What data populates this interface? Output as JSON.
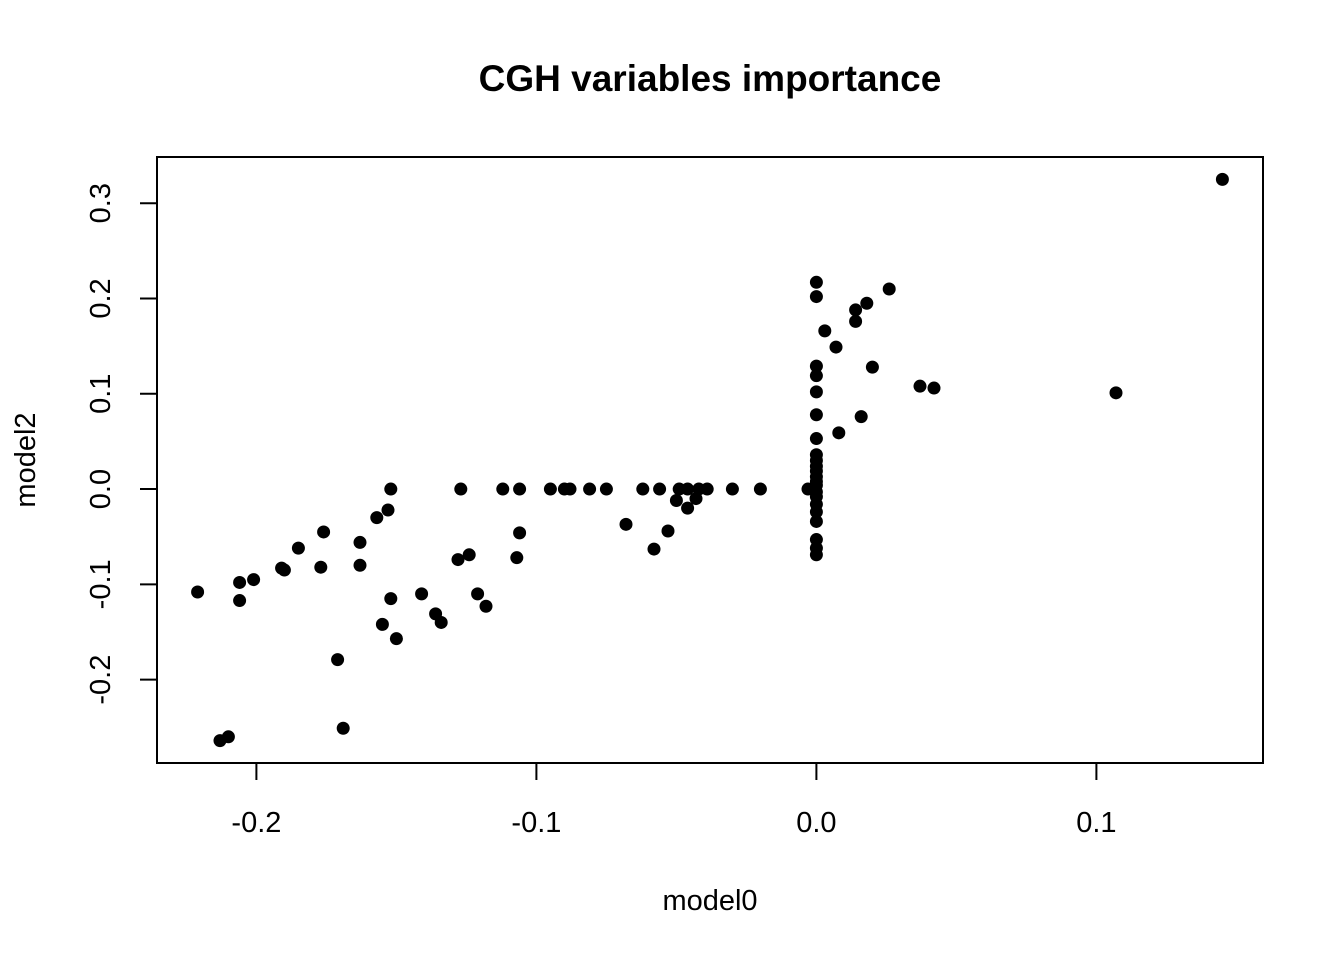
{
  "chart_data": {
    "type": "scatter",
    "title": "CGH variables importance",
    "xlabel": "model0",
    "ylabel": "model2",
    "xlim": [
      -0.2355,
      0.1595
    ],
    "ylim": [
      -0.2875,
      0.3485
    ],
    "x_ticks": [
      -0.2,
      -0.1,
      0.0,
      0.1
    ],
    "x_tick_labels": [
      "-0.2",
      "-0.1",
      "0.0",
      "0.1"
    ],
    "y_ticks": [
      -0.2,
      -0.1,
      0.0,
      0.1,
      0.2,
      0.3
    ],
    "y_tick_labels": [
      "-0.2",
      "-0.1",
      "0.0",
      "0.1",
      "0.2",
      "0.3"
    ],
    "grid": false,
    "marker": "filled-circle",
    "point_color": "#000000",
    "points": [
      [
        0.145,
        0.325
      ],
      [
        0.107,
        0.101
      ],
      [
        0.042,
        0.106
      ],
      [
        0.037,
        0.108
      ],
      [
        0.026,
        0.21
      ],
      [
        0.02,
        0.128
      ],
      [
        0.018,
        0.195
      ],
      [
        0.016,
        0.076
      ],
      [
        0.014,
        0.188
      ],
      [
        0.014,
        0.176
      ],
      [
        0.008,
        0.059
      ],
      [
        0.007,
        0.149
      ],
      [
        0.003,
        0.166
      ],
      [
        0.0,
        0.217
      ],
      [
        0.0,
        0.202
      ],
      [
        0.0,
        0.129
      ],
      [
        0.0,
        0.119
      ],
      [
        0.0,
        0.102
      ],
      [
        0.0,
        0.078
      ],
      [
        0.0,
        0.053
      ],
      [
        0.0,
        0.036
      ],
      [
        0.0,
        0.03
      ],
      [
        0.0,
        0.024
      ],
      [
        0.0,
        0.019
      ],
      [
        0.0,
        0.013
      ],
      [
        0.0,
        0.008
      ],
      [
        0.0,
        0.004
      ],
      [
        0.0,
        -0.003
      ],
      [
        0.0,
        -0.008
      ],
      [
        0.0,
        -0.016
      ],
      [
        0.0,
        -0.024
      ],
      [
        0.0,
        -0.034
      ],
      [
        0.0,
        -0.053
      ],
      [
        0.0,
        -0.062
      ],
      [
        0.0,
        -0.069
      ],
      [
        -0.003,
        0.0
      ],
      [
        -0.02,
        0.0
      ],
      [
        -0.03,
        0.0
      ],
      [
        -0.039,
        0.0
      ],
      [
        -0.042,
        0.0
      ],
      [
        -0.043,
        -0.01
      ],
      [
        -0.046,
        0.0
      ],
      [
        -0.046,
        -0.02
      ],
      [
        -0.049,
        0.0
      ],
      [
        -0.05,
        -0.012
      ],
      [
        -0.053,
        -0.044
      ],
      [
        -0.056,
        0.0
      ],
      [
        -0.058,
        -0.063
      ],
      [
        -0.062,
        0.0
      ],
      [
        -0.068,
        -0.037
      ],
      [
        -0.075,
        0.0
      ],
      [
        -0.081,
        0.0
      ],
      [
        -0.088,
        0.0
      ],
      [
        -0.09,
        0.0
      ],
      [
        -0.095,
        0.0
      ],
      [
        -0.106,
        0.0
      ],
      [
        -0.106,
        -0.046
      ],
      [
        -0.107,
        -0.072
      ],
      [
        -0.112,
        0.0
      ],
      [
        -0.118,
        -0.123
      ],
      [
        -0.121,
        -0.11
      ],
      [
        -0.124,
        -0.069
      ],
      [
        -0.127,
        0.0
      ],
      [
        -0.128,
        -0.074
      ],
      [
        -0.134,
        -0.14
      ],
      [
        -0.136,
        -0.131
      ],
      [
        -0.141,
        -0.11
      ],
      [
        -0.15,
        -0.157
      ],
      [
        -0.152,
        0.0
      ],
      [
        -0.152,
        -0.115
      ],
      [
        -0.153,
        -0.022
      ],
      [
        -0.155,
        -0.142
      ],
      [
        -0.157,
        -0.03
      ],
      [
        -0.163,
        -0.056
      ],
      [
        -0.163,
        -0.08
      ],
      [
        -0.169,
        -0.251
      ],
      [
        -0.171,
        -0.179
      ],
      [
        -0.176,
        -0.045
      ],
      [
        -0.177,
        -0.082
      ],
      [
        -0.185,
        -0.062
      ],
      [
        -0.19,
        -0.085
      ],
      [
        -0.191,
        -0.083
      ],
      [
        -0.201,
        -0.095
      ],
      [
        -0.206,
        -0.098
      ],
      [
        -0.206,
        -0.117
      ],
      [
        -0.21,
        -0.26
      ],
      [
        -0.213,
        -0.264
      ],
      [
        -0.221,
        -0.108
      ]
    ]
  }
}
